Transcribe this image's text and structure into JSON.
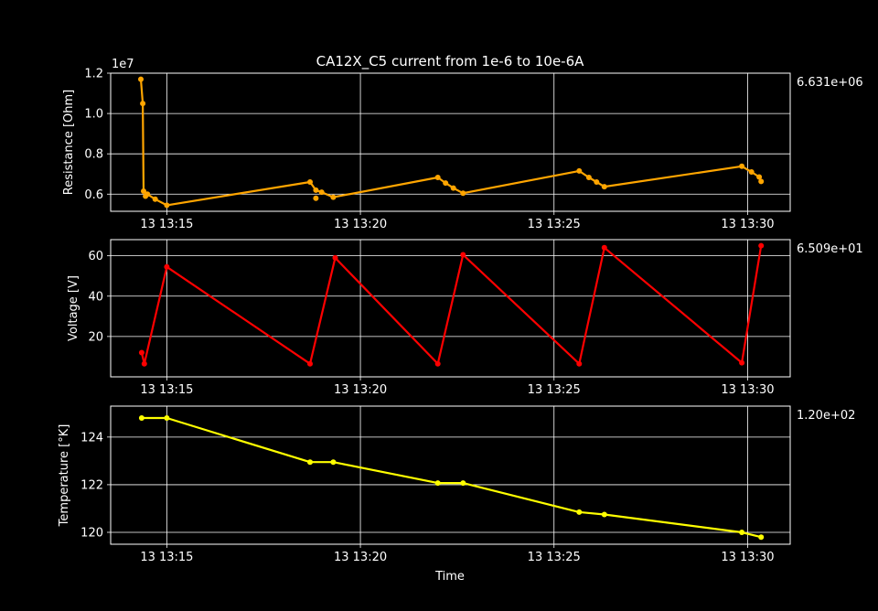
{
  "title": "CA12X_C5 current from 1e-6 to 10e-6A",
  "xlabel": "Time",
  "x_tick_labels": [
    "13 13:15",
    "13 13:20",
    "13 13:25",
    "13 13:30"
  ],
  "x_tick_minutes": [
    15,
    20,
    25,
    30
  ],
  "colors": {
    "background": "#000000",
    "foreground": "#ffffff",
    "resistance": "#ffa500",
    "voltage": "#ff0000",
    "temperature": "#ffff00"
  },
  "chart_data": [
    {
      "type": "line",
      "name": "resistance",
      "ylabel": "Resistance [Ohm]",
      "y_exponent_label": "1e7",
      "y_ticks": [
        0.6,
        0.8,
        1.0,
        1.2
      ],
      "y_tick_labels": [
        "0.6",
        "0.8",
        "1.0",
        "1.2"
      ],
      "ylim": [
        0.515,
        1.2
      ],
      "xlim_minutes": [
        13.55,
        31.1
      ],
      "last_value_label": "6.631e+06",
      "x_unit": "minutes after 13:00",
      "y_unit": "1e7 Ohm",
      "points": [
        [
          14.33,
          1.17
        ],
        [
          14.38,
          1.05
        ],
        [
          14.4,
          0.615
        ],
        [
          14.5,
          0.6
        ],
        [
          14.7,
          0.575
        ],
        [
          15.0,
          0.545
        ],
        [
          18.7,
          0.66
        ],
        [
          18.85,
          0.62
        ],
        [
          19.0,
          0.61
        ],
        [
          19.3,
          0.585
        ],
        [
          22.0,
          0.683
        ],
        [
          22.2,
          0.655
        ],
        [
          22.4,
          0.63
        ],
        [
          22.65,
          0.605
        ],
        [
          25.65,
          0.715
        ],
        [
          25.9,
          0.683
        ],
        [
          26.1,
          0.66
        ],
        [
          26.3,
          0.637
        ],
        [
          29.85,
          0.738
        ],
        [
          30.1,
          0.71
        ],
        [
          30.3,
          0.685
        ],
        [
          30.35,
          0.663
        ]
      ],
      "outliers": [
        [
          14.45,
          0.59
        ],
        [
          18.85,
          0.58
        ]
      ]
    },
    {
      "type": "line",
      "name": "voltage",
      "ylabel": "Voltage [V]",
      "y_ticks": [
        20,
        40,
        60
      ],
      "y_tick_labels": [
        "20",
        "40",
        "60"
      ],
      "ylim": [
        0,
        68
      ],
      "xlim_minutes": [
        13.55,
        31.1
      ],
      "last_value_label": "6.509e+01",
      "x_unit": "minutes after 13:00",
      "y_unit": "V",
      "points": [
        [
          14.35,
          12
        ],
        [
          14.42,
          6.5
        ],
        [
          15.0,
          54.5
        ],
        [
          18.7,
          6.5
        ],
        [
          19.35,
          59
        ],
        [
          22.0,
          6.5
        ],
        [
          22.65,
          60.5
        ],
        [
          25.65,
          6.5
        ],
        [
          26.3,
          64
        ],
        [
          29.85,
          7
        ],
        [
          30.35,
          65
        ]
      ]
    },
    {
      "type": "line",
      "name": "temperature",
      "ylabel": "Temperature [°K]",
      "y_ticks": [
        120,
        122,
        124
      ],
      "y_tick_labels": [
        "120",
        "122",
        "124"
      ],
      "ylim": [
        119.5,
        125.3
      ],
      "xlim_minutes": [
        13.55,
        31.1
      ],
      "last_value_label": "1.20e+02",
      "x_unit": "minutes after 13:00",
      "y_unit": "°K",
      "points": [
        [
          14.35,
          124.8
        ],
        [
          15.0,
          124.8
        ],
        [
          18.7,
          122.95
        ],
        [
          19.3,
          122.95
        ],
        [
          22.0,
          122.07
        ],
        [
          22.65,
          122.07
        ],
        [
          25.65,
          120.85
        ],
        [
          26.3,
          120.75
        ],
        [
          29.85,
          120.0
        ],
        [
          30.35,
          119.8
        ]
      ]
    }
  ]
}
